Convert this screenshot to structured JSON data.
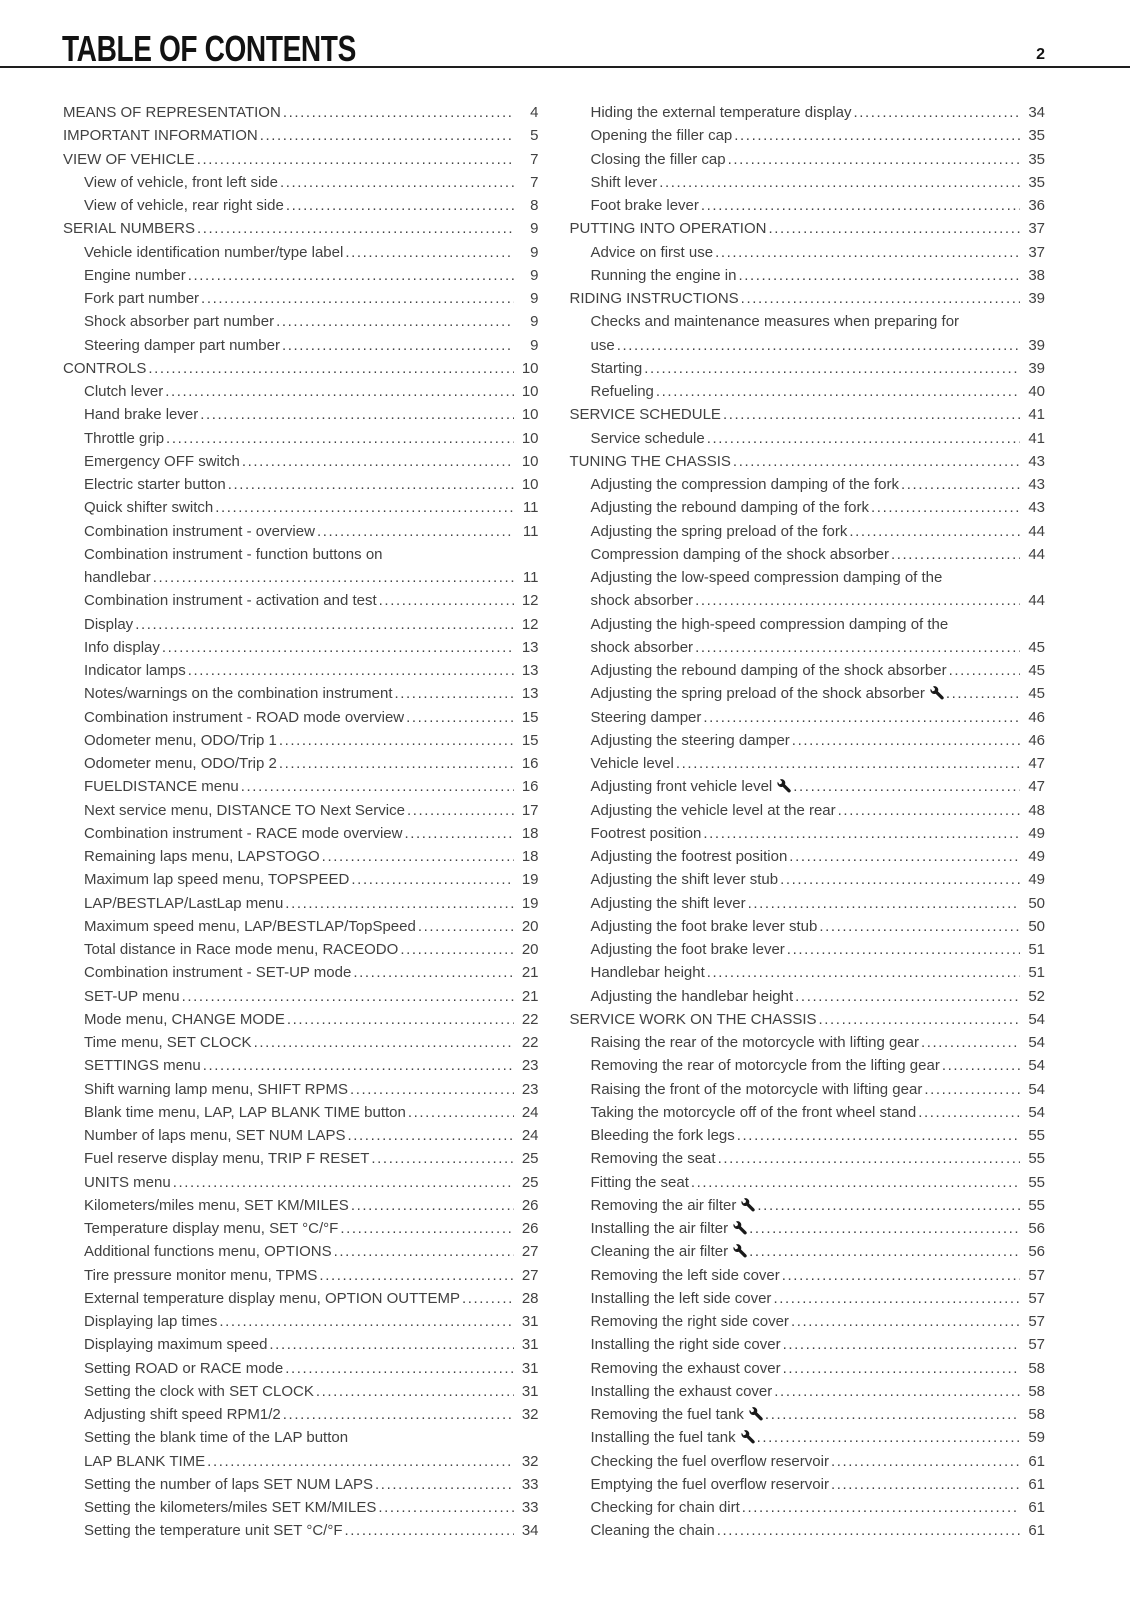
{
  "header": {
    "title": "TABLE OF CONTENTS",
    "page_number": "2"
  },
  "toc": {
    "left": [
      {
        "label": "MEANS OF REPRESENTATION",
        "page": "4",
        "level": 0
      },
      {
        "label": "IMPORTANT INFORMATION",
        "page": "5",
        "level": 0
      },
      {
        "label": "VIEW OF VEHICLE",
        "page": "7",
        "level": 0
      },
      {
        "label": "View of vehicle, front left side",
        "page": "7",
        "level": 1
      },
      {
        "label": "View of vehicle, rear right side",
        "page": "8",
        "level": 1
      },
      {
        "label": "SERIAL NUMBERS",
        "page": "9",
        "level": 0
      },
      {
        "label": "Vehicle identification number/type label",
        "page": "9",
        "level": 1
      },
      {
        "label": "Engine number",
        "page": "9",
        "level": 1
      },
      {
        "label": "Fork part number",
        "page": "9",
        "level": 1
      },
      {
        "label": "Shock absorber part number",
        "page": "9",
        "level": 1
      },
      {
        "label": "Steering damper part number",
        "page": "9",
        "level": 1
      },
      {
        "label": "CONTROLS",
        "page": "10",
        "level": 0
      },
      {
        "label": "Clutch lever",
        "page": "10",
        "level": 1
      },
      {
        "label": "Hand brake lever",
        "page": "10",
        "level": 1
      },
      {
        "label": "Throttle grip",
        "page": "10",
        "level": 1
      },
      {
        "label": "Emergency OFF switch",
        "page": "10",
        "level": 1
      },
      {
        "label": "Electric starter button",
        "page": "10",
        "level": 1
      },
      {
        "label": "Quick shifter switch",
        "page": "11",
        "level": 1
      },
      {
        "label": "Combination instrument - overview",
        "page": "11",
        "level": 1
      },
      {
        "label": "Combination instrument - function buttons on",
        "label2": "handlebar",
        "page": "11",
        "level": 1
      },
      {
        "label": "Combination instrument - activation and test",
        "page": "12",
        "level": 1
      },
      {
        "label": "Display",
        "page": "12",
        "level": 1
      },
      {
        "label": "Info display",
        "page": "13",
        "level": 1
      },
      {
        "label": "Indicator lamps",
        "page": "13",
        "level": 1
      },
      {
        "label": "Notes/warnings on the combination instrument",
        "page": "13",
        "level": 1
      },
      {
        "label": "Combination instrument - ROAD mode overview",
        "page": "15",
        "level": 1
      },
      {
        "label": "Odometer menu, ODO/Trip 1",
        "page": "15",
        "level": 1
      },
      {
        "label": "Odometer menu, ODO/Trip 2",
        "page": "16",
        "level": 1
      },
      {
        "label": "FUELDISTANCE menu",
        "page": "16",
        "level": 1
      },
      {
        "label": "Next service menu, DISTANCE TO Next Service",
        "page": "17",
        "level": 1
      },
      {
        "label": "Combination instrument - RACE mode overview",
        "page": "18",
        "level": 1
      },
      {
        "label": "Remaining laps menu, LAPSTOGO",
        "page": "18",
        "level": 1
      },
      {
        "label": "Maximum lap speed menu, TOPSPEED",
        "page": "19",
        "level": 1
      },
      {
        "label": "LAP/BESTLAP/LastLap menu",
        "page": "19",
        "level": 1
      },
      {
        "label": "Maximum speed menu, LAP/BESTLAP/TopSpeed",
        "page": "20",
        "level": 1
      },
      {
        "label": "Total distance in Race mode menu, RACEODO",
        "page": "20",
        "level": 1
      },
      {
        "label": "Combination instrument - SET-UP mode",
        "page": "21",
        "level": 1
      },
      {
        "label": "SET-UP menu",
        "page": "21",
        "level": 1
      },
      {
        "label": "Mode menu, CHANGE MODE",
        "page": "22",
        "level": 1
      },
      {
        "label": "Time menu, SET CLOCK",
        "page": "22",
        "level": 1
      },
      {
        "label": "SETTINGS menu",
        "page": "23",
        "level": 1
      },
      {
        "label": "Shift warning lamp menu, SHIFT RPMS",
        "page": "23",
        "level": 1
      },
      {
        "label": "Blank time menu, LAP, LAP BLANK TIME button",
        "page": "24",
        "level": 1
      },
      {
        "label": "Number of laps menu, SET NUM LAPS",
        "page": "24",
        "level": 1
      },
      {
        "label": "Fuel reserve display menu, TRIP F RESET",
        "page": "25",
        "level": 1
      },
      {
        "label": "UNITS menu",
        "page": "25",
        "level": 1
      },
      {
        "label": "Kilometers/miles menu, SET KM/MILES",
        "page": "26",
        "level": 1
      },
      {
        "label": "Temperature display menu, SET °C/°F",
        "page": "26",
        "level": 1
      },
      {
        "label": "Additional functions menu, OPTIONS",
        "page": "27",
        "level": 1
      },
      {
        "label": "Tire pressure monitor menu, TPMS",
        "page": "27",
        "level": 1
      },
      {
        "label": "External temperature display menu, OPTION OUTTEMP",
        "page": "28",
        "level": 1
      },
      {
        "label": "Displaying lap times",
        "page": "31",
        "level": 1
      },
      {
        "label": "Displaying maximum speed",
        "page": "31",
        "level": 1
      },
      {
        "label": "Setting ROAD or RACE mode",
        "page": "31",
        "level": 1
      },
      {
        "label": "Setting the clock with SET CLOCK",
        "page": "31",
        "level": 1
      },
      {
        "label": "Adjusting shift speed RPM1/2",
        "page": "32",
        "level": 1
      },
      {
        "label": "Setting the blank time of the LAP button",
        "label2": "LAP BLANK TIME",
        "page": "32",
        "level": 1
      },
      {
        "label": "Setting the number of laps SET NUM LAPS",
        "page": "33",
        "level": 1
      },
      {
        "label": "Setting the kilometers/miles SET KM/MILES",
        "page": "33",
        "level": 1
      },
      {
        "label": "Setting the temperature unit SET °C/°F",
        "page": "34",
        "level": 1
      }
    ],
    "right": [
      {
        "label": "Hiding the external temperature display",
        "page": "34",
        "level": 1
      },
      {
        "label": "Opening the filler cap",
        "page": "35",
        "level": 1
      },
      {
        "label": "Closing the filler cap",
        "page": "35",
        "level": 1
      },
      {
        "label": "Shift lever",
        "page": "35",
        "level": 1
      },
      {
        "label": "Foot brake lever",
        "page": "36",
        "level": 1
      },
      {
        "label": "PUTTING INTO OPERATION",
        "page": "37",
        "level": 0
      },
      {
        "label": "Advice on first use",
        "page": "37",
        "level": 1
      },
      {
        "label": "Running the engine in",
        "page": "38",
        "level": 1
      },
      {
        "label": "RIDING INSTRUCTIONS",
        "page": "39",
        "level": 0
      },
      {
        "label": "Checks and maintenance measures when preparing for",
        "label2": "use",
        "page": "39",
        "level": 1
      },
      {
        "label": "Starting",
        "page": "39",
        "level": 1
      },
      {
        "label": "Refueling",
        "page": "40",
        "level": 1
      },
      {
        "label": "SERVICE SCHEDULE",
        "page": "41",
        "level": 0
      },
      {
        "label": "Service schedule",
        "page": "41",
        "level": 1
      },
      {
        "label": "TUNING THE CHASSIS",
        "page": "43",
        "level": 0
      },
      {
        "label": "Adjusting the compression damping of the fork",
        "page": "43",
        "level": 1
      },
      {
        "label": "Adjusting the rebound damping of the fork",
        "page": "43",
        "level": 1
      },
      {
        "label": "Adjusting the spring preload of the fork",
        "page": "44",
        "level": 1
      },
      {
        "label": "Compression damping of the shock absorber",
        "page": "44",
        "level": 1
      },
      {
        "label": "Adjusting the low-speed compression damping of the",
        "label2": "shock absorber",
        "page": "44",
        "level": 1
      },
      {
        "label": "Adjusting the high-speed compression damping of the",
        "label2": "shock absorber",
        "page": "45",
        "level": 1
      },
      {
        "label": "Adjusting the rebound damping of the shock absorber",
        "page": "45",
        "level": 1
      },
      {
        "label": "Adjusting the spring preload of the shock absorber",
        "page": "45",
        "level": 1,
        "icon": "wrench"
      },
      {
        "label": "Steering damper",
        "page": "46",
        "level": 1
      },
      {
        "label": "Adjusting the steering damper",
        "page": "46",
        "level": 1
      },
      {
        "label": "Vehicle level",
        "page": "47",
        "level": 1
      },
      {
        "label": "Adjusting front vehicle level",
        "page": "47",
        "level": 1,
        "icon": "wrench"
      },
      {
        "label": "Adjusting the vehicle level at the rear",
        "page": "48",
        "level": 1
      },
      {
        "label": "Footrest position",
        "page": "49",
        "level": 1
      },
      {
        "label": "Adjusting the footrest position",
        "page": "49",
        "level": 1
      },
      {
        "label": "Adjusting the shift lever stub",
        "page": "49",
        "level": 1
      },
      {
        "label": "Adjusting the shift lever",
        "page": "50",
        "level": 1
      },
      {
        "label": "Adjusting the foot brake lever stub",
        "page": "50",
        "level": 1
      },
      {
        "label": "Adjusting the foot brake lever",
        "page": "51",
        "level": 1
      },
      {
        "label": "Handlebar height",
        "page": "51",
        "level": 1
      },
      {
        "label": "Adjusting the handlebar height",
        "page": "52",
        "level": 1
      },
      {
        "label": "SERVICE WORK ON THE CHASSIS",
        "page": "54",
        "level": 0
      },
      {
        "label": "Raising the rear of the motorcycle with lifting gear",
        "page": "54",
        "level": 1
      },
      {
        "label": "Removing the rear of motorcycle from the lifting gear",
        "page": "54",
        "level": 1
      },
      {
        "label": "Raising the front of the motorcycle with lifting gear",
        "page": "54",
        "level": 1
      },
      {
        "label": "Taking the motorcycle off of the front wheel stand",
        "page": "54",
        "level": 1
      },
      {
        "label": "Bleeding the fork legs",
        "page": "55",
        "level": 1
      },
      {
        "label": "Removing the seat",
        "page": "55",
        "level": 1
      },
      {
        "label": "Fitting the seat",
        "page": "55",
        "level": 1
      },
      {
        "label": "Removing the air filter",
        "page": "55",
        "level": 1,
        "icon": "wrench"
      },
      {
        "label": "Installing the air filter",
        "page": "56",
        "level": 1,
        "icon": "wrench"
      },
      {
        "label": "Cleaning the air filter",
        "page": "56",
        "level": 1,
        "icon": "wrench"
      },
      {
        "label": "Removing the left side cover",
        "page": "57",
        "level": 1
      },
      {
        "label": "Installing the left side cover",
        "page": "57",
        "level": 1
      },
      {
        "label": "Removing the right side cover",
        "page": "57",
        "level": 1
      },
      {
        "label": "Installing the right side cover",
        "page": "57",
        "level": 1
      },
      {
        "label": "Removing the exhaust cover",
        "page": "58",
        "level": 1
      },
      {
        "label": "Installing the exhaust cover",
        "page": "58",
        "level": 1
      },
      {
        "label": "Removing the fuel tank",
        "page": "58",
        "level": 1,
        "icon": "wrench"
      },
      {
        "label": "Installing the fuel tank",
        "page": "59",
        "level": 1,
        "icon": "wrench"
      },
      {
        "label": "Checking the fuel overflow reservoir",
        "page": "61",
        "level": 1
      },
      {
        "label": "Emptying the fuel overflow reservoir",
        "page": "61",
        "level": 1
      },
      {
        "label": "Checking for chain dirt",
        "page": "61",
        "level": 1
      },
      {
        "label": "Cleaning the chain",
        "page": "61",
        "level": 1
      }
    ]
  }
}
